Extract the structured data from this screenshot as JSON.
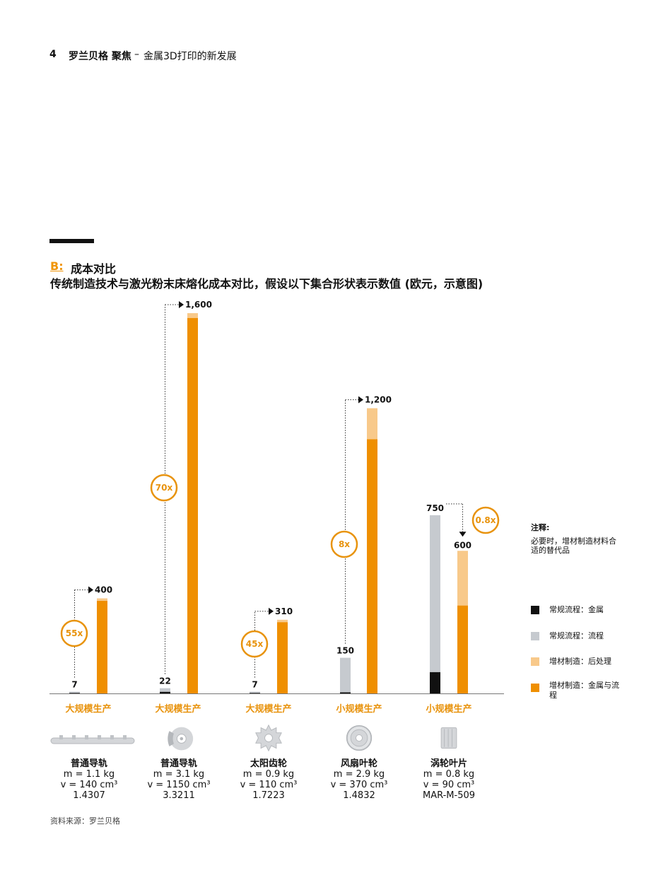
{
  "header": {
    "page_number": "4",
    "brand": "罗兰贝格 聚焦",
    "separator": "–",
    "topic": "金属3D打印的新发展"
  },
  "section": {
    "letter": "B:",
    "title": "成本对比",
    "subtitle": "传统制造技术与激光粉末床熔化成本对比，假设以下集合形状表示数值 (欧元，示意图)"
  },
  "notes": {
    "heading": "注释:",
    "body": "必要时，增材制造材料合适的替代品"
  },
  "legend": [
    {
      "label": "常规流程：金属",
      "color": "#111111"
    },
    {
      "label": "常规流程：流程",
      "color": "#c6cacf"
    },
    {
      "label": "增材制造：后处理",
      "color": "#f8c98a"
    },
    {
      "label": "增材制造：金属与流程",
      "color": "#ef8f00"
    }
  ],
  "chart_data": {
    "type": "bar",
    "stacked": true,
    "ylim": [
      0,
      1600
    ],
    "categories": [
      "大规模生产",
      "大规模生产",
      "大规模生产",
      "小规模生产",
      "小规模生产"
    ],
    "groups": [
      {
        "category": "大规模生产",
        "conventional": {
          "metal": 2,
          "process": 5,
          "total_label": "7"
        },
        "additive": {
          "metal_process": 390,
          "post": 10,
          "total_label": "400"
        },
        "factor": "55x",
        "part": {
          "name": "普通导轨",
          "mass": "m = 1.1 kg",
          "volume": "v = 140 cm³",
          "material": "1.4307",
          "icon": "rail-icon"
        }
      },
      {
        "category": "大规模生产",
        "conventional": {
          "metal": 7,
          "process": 15,
          "total_label": "22"
        },
        "additive": {
          "metal_process": 1580,
          "post": 20,
          "total_label": "1,600"
        },
        "factor": "70x",
        "part": {
          "name": "普通导轨",
          "mass": "m = 3.1 kg",
          "volume": "v = 1150 cm³",
          "material": "3.3211",
          "icon": "brake-disc-icon"
        }
      },
      {
        "category": "大规模生产",
        "conventional": {
          "metal": 2,
          "process": 5,
          "total_label": "7"
        },
        "additive": {
          "metal_process": 300,
          "post": 10,
          "total_label": "310"
        },
        "factor": "45x",
        "part": {
          "name": "太阳齿轮",
          "mass": "m = 0.9 kg",
          "volume": "v = 110 cm³",
          "material": "1.7223",
          "icon": "sun-gear-icon"
        }
      },
      {
        "category": "小规模生产",
        "conventional": {
          "metal": 5,
          "process": 145,
          "total_label": "150"
        },
        "additive": {
          "metal_process": 1070,
          "post": 130,
          "total_label": "1,200"
        },
        "factor": "8x",
        "part": {
          "name": "风扇叶轮",
          "mass": "m = 2.9 kg",
          "volume": "v = 370 cm³",
          "material": "1.4832",
          "icon": "fan-impeller-icon"
        }
      },
      {
        "category": "小规模生产",
        "conventional": {
          "metal": 90,
          "process": 660,
          "total_label": "750"
        },
        "additive": {
          "metal_process": 370,
          "post": 230,
          "total_label": "600"
        },
        "factor": "0.8x",
        "part": {
          "name": "涡轮叶片",
          "mass": "m = 0.8 kg",
          "volume": "v = 90 cm³",
          "material": "MAR-M-509",
          "icon": "turbine-blade-icon"
        }
      }
    ]
  },
  "source": "资料来源：罗兰贝格"
}
